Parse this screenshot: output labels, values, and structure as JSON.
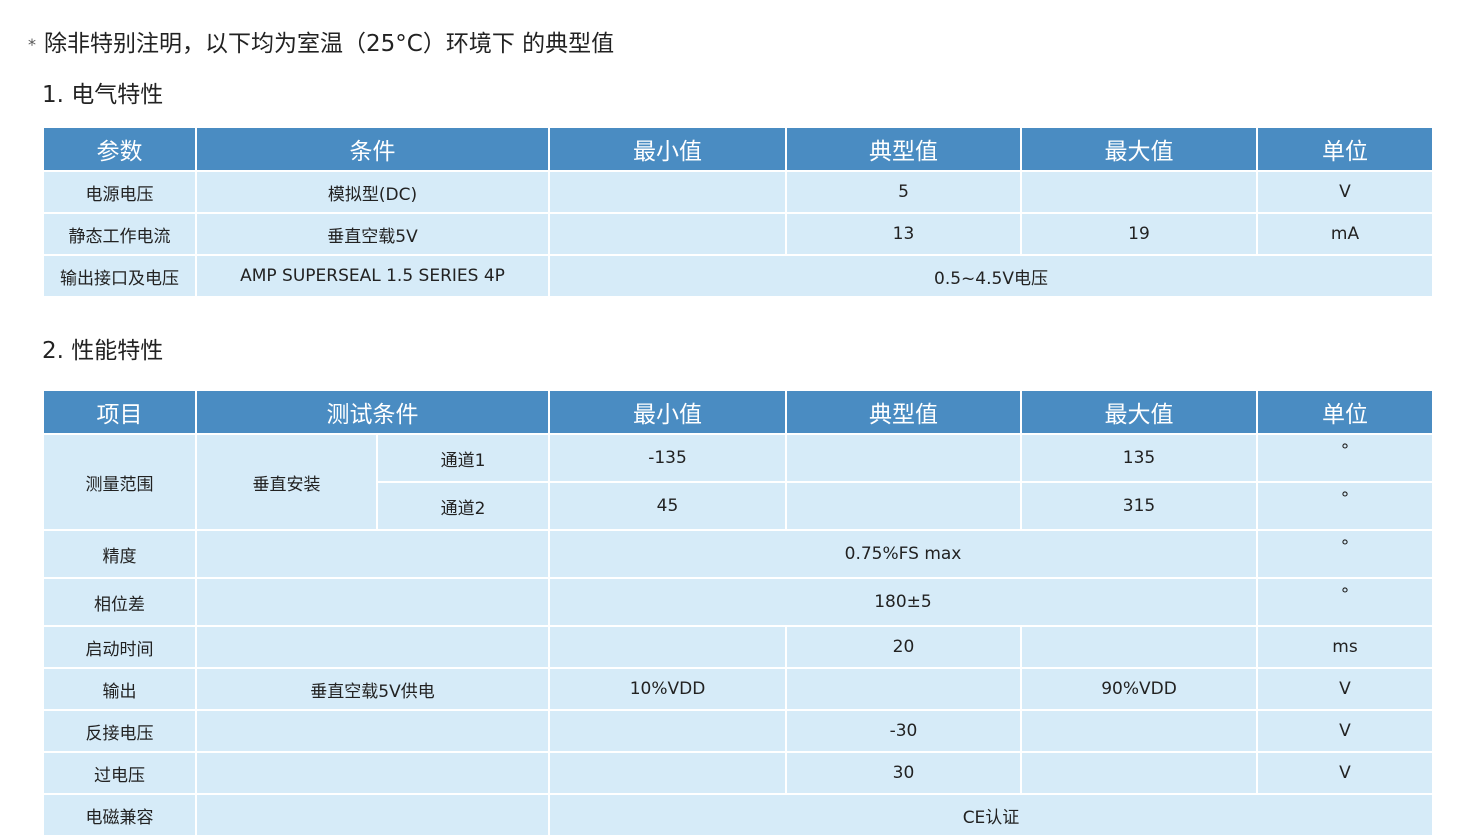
{
  "note": {
    "mark": "*",
    "text": "除非特别注明，以下均为室温（25°C）环境下 的典型值"
  },
  "section1": {
    "title": "1. 电气特性",
    "headers": [
      "参数",
      "条件",
      "最小值",
      "典型值",
      "最大值",
      "单位"
    ],
    "rows": [
      {
        "param": "电源电压",
        "cond": "模拟型(DC)",
        "min": "",
        "typ": "5",
        "max": "",
        "unit": "V"
      },
      {
        "param": "静态工作电流",
        "cond": "垂直空载5V",
        "min": "",
        "typ": "13",
        "max": "19",
        "unit": "mA"
      },
      {
        "param": "输出接口及电压",
        "cond": "AMP SUPERSEAL 1.5 SERIES 4P",
        "value": "0.5~4.5V电压"
      }
    ]
  },
  "section2": {
    "title": "2. 性能特性",
    "headers": [
      "项目",
      "测试条件",
      "最小值",
      "典型值",
      "最大值",
      "单位"
    ],
    "range": {
      "item": "测量范围",
      "cond": "垂直安装",
      "ch1": {
        "label": "通道1",
        "min": "-135",
        "typ": "",
        "max": "135",
        "unit": "°"
      },
      "ch2": {
        "label": "通道2",
        "min": "45",
        "typ": "",
        "max": "315",
        "unit": "°"
      }
    },
    "accuracy": {
      "item": "精度",
      "value": "0.75%FS max",
      "unit": "°"
    },
    "phase": {
      "item": "相位差",
      "value": "180±5",
      "unit": "°"
    },
    "startup": {
      "item": "启动时间",
      "typ": "20",
      "unit": "ms"
    },
    "output": {
      "item": "输出",
      "cond": "垂直空载5V供电",
      "min": "10%VDD",
      "max": "90%VDD",
      "unit": "V"
    },
    "reverse": {
      "item": "反接电压",
      "typ": "-30",
      "unit": "V"
    },
    "over": {
      "item": "过电压",
      "typ": "30",
      "unit": "V"
    },
    "emc": {
      "item": "电磁兼容",
      "value": "CE认证"
    }
  },
  "colors": {
    "header": "#4a8cc2",
    "row": "#d6ebf8"
  }
}
